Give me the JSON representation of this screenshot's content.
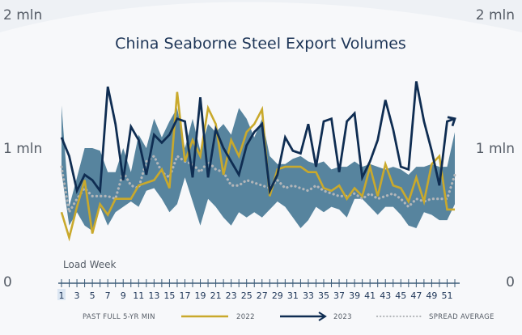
{
  "chart_data": {
    "type": "line",
    "title": "China Seaborne Steel Export Volumes",
    "xlabel": "Load Week",
    "y_ticks_left": [
      "0",
      "1 mln",
      "2 mln"
    ],
    "y_ticks_right": [
      "0",
      "1 mln",
      "2 mln"
    ],
    "ylim": [
      0,
      2000000
    ],
    "x": [
      1,
      2,
      3,
      4,
      5,
      6,
      7,
      8,
      9,
      10,
      11,
      12,
      13,
      14,
      15,
      16,
      17,
      18,
      19,
      20,
      21,
      22,
      23,
      24,
      25,
      26,
      27,
      28,
      29,
      30,
      31,
      32,
      33,
      34,
      35,
      36,
      37,
      38,
      39,
      40,
      41,
      42,
      43,
      44,
      45,
      46,
      47,
      48,
      49,
      50,
      51,
      52
    ],
    "x_tick_labels": [
      "1",
      "3",
      "5",
      "7",
      "9",
      "11",
      "13",
      "15",
      "17",
      "19",
      "21",
      "23",
      "25",
      "27",
      "29",
      "31",
      "33",
      "35",
      "37",
      "39",
      "41",
      "43",
      "45",
      "47",
      "49",
      "51"
    ],
    "band": {
      "name": "PAST FULL 5-YR MIN",
      "color": "#4e7d99",
      "min": [
        820000,
        420000,
        520000,
        420000,
        380000,
        560000,
        420000,
        520000,
        560000,
        600000,
        560000,
        680000,
        700000,
        620000,
        520000,
        580000,
        780000,
        600000,
        420000,
        620000,
        560000,
        480000,
        420000,
        520000,
        480000,
        520000,
        480000,
        540000,
        600000,
        560000,
        480000,
        400000,
        460000,
        560000,
        520000,
        560000,
        540000,
        480000,
        620000,
        620000,
        560000,
        500000,
        560000,
        560000,
        500000,
        420000,
        400000,
        520000,
        500000,
        460000,
        460000,
        580000
      ],
      "max": [
        1320000,
        560000,
        780000,
        1000000,
        1000000,
        980000,
        820000,
        820000,
        1000000,
        820000,
        1100000,
        1000000,
        1220000,
        1080000,
        1200000,
        1300000,
        1000000,
        1220000,
        980000,
        1180000,
        1120000,
        1180000,
        1100000,
        1300000,
        1220000,
        1080000,
        1220000,
        940000,
        880000,
        880000,
        920000,
        940000,
        900000,
        880000,
        900000,
        840000,
        860000,
        860000,
        900000,
        860000,
        880000,
        860000,
        840000,
        860000,
        840000,
        800000,
        860000,
        860000,
        880000,
        860000,
        860000,
        1120000
      ]
    },
    "series": [
      {
        "name": "2022",
        "color": "#c9a92c",
        "values": [
          520000,
          330000,
          560000,
          760000,
          360000,
          580000,
          500000,
          620000,
          620000,
          620000,
          720000,
          740000,
          760000,
          840000,
          700000,
          1420000,
          900000,
          1060000,
          940000,
          1300000,
          1180000,
          800000,
          1060000,
          940000,
          1120000,
          1180000,
          1290000,
          640000,
          840000,
          860000,
          860000,
          860000,
          820000,
          820000,
          700000,
          680000,
          720000,
          620000,
          700000,
          640000,
          860000,
          640000,
          880000,
          720000,
          700000,
          600000,
          780000,
          600000,
          880000,
          940000,
          540000,
          540000
        ]
      },
      {
        "name": "2023",
        "color": "#0f2d52",
        "values": [
          1080000,
          940000,
          680000,
          800000,
          760000,
          680000,
          1460000,
          1180000,
          760000,
          1160000,
          1060000,
          800000,
          1100000,
          1040000,
          1100000,
          1220000,
          1200000,
          780000,
          1380000,
          780000,
          1140000,
          1000000,
          900000,
          800000,
          1020000,
          1120000,
          1180000,
          680000,
          800000,
          1080000,
          980000,
          960000,
          1180000,
          860000,
          1200000,
          1220000,
          820000,
          1200000,
          1260000,
          780000,
          900000,
          1060000,
          1360000,
          1140000,
          860000,
          840000,
          1500000,
          1200000,
          980000,
          720000,
          1200000,
          1220000
        ]
      },
      {
        "name": "SPREAD AVERAGE",
        "color": "#b3b6b9",
        "values": [
          860000,
          520000,
          620000,
          700000,
          640000,
          640000,
          640000,
          620000,
          820000,
          720000,
          700000,
          900000,
          940000,
          820000,
          780000,
          940000,
          900000,
          880000,
          820000,
          900000,
          840000,
          820000,
          720000,
          720000,
          760000,
          740000,
          720000,
          700000,
          760000,
          700000,
          720000,
          700000,
          680000,
          720000,
          680000,
          660000,
          640000,
          640000,
          660000,
          620000,
          660000,
          620000,
          640000,
          660000,
          620000,
          560000,
          620000,
          600000,
          620000,
          620000,
          620000,
          800000
        ]
      }
    ],
    "legend": [
      "PAST FULL 5-YR MIN",
      "2022",
      "2023",
      "SPREAD AVERAGE"
    ],
    "legend_position": "bottom"
  }
}
